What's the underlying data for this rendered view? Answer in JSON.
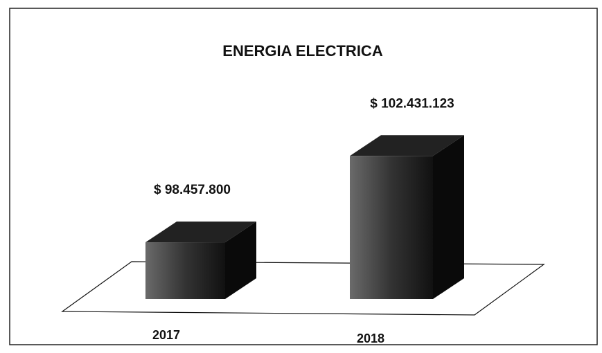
{
  "chart_data": {
    "type": "bar3d",
    "title": "ENERGIA ELECTRICA",
    "categories": [
      "2017",
      "2018"
    ],
    "values": [
      98457800,
      102431123
    ],
    "value_labels": [
      "$ 98.457.800",
      "$ 102.431.123"
    ],
    "color": "#1a1a1a",
    "ylim": [
      95850000,
      104000000
    ]
  }
}
